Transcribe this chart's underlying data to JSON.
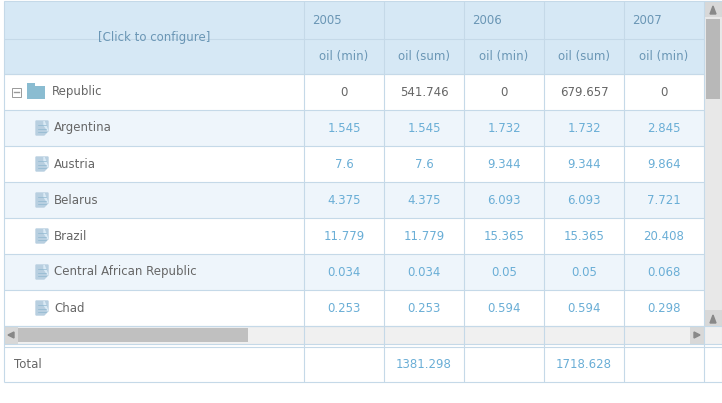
{
  "header_bg": "#d6e8f5",
  "header_text_color": "#6a96b5",
  "row_bg_white": "#ffffff",
  "row_bg_light": "#eef5fb",
  "separator_color": "#c5d9e8",
  "text_color_dark": "#666666",
  "text_color_blue": "#6aaed6",
  "click_to_configure": "[Click to configure]",
  "years": [
    "2005",
    "2006",
    "2007"
  ],
  "sub_headers": [
    "oil (min)",
    "oil (sum)",
    "oil (min)",
    "oil (sum)",
    "oil (min)"
  ],
  "rows": [
    {
      "label": "Republic",
      "level": 0,
      "type": "group",
      "values": [
        "0",
        "541.746",
        "0",
        "679.657",
        "0"
      ]
    },
    {
      "label": "Argentina",
      "level": 1,
      "type": "item",
      "values": [
        "1.545",
        "1.545",
        "1.732",
        "1.732",
        "2.845"
      ]
    },
    {
      "label": "Austria",
      "level": 1,
      "type": "item",
      "values": [
        "7.6",
        "7.6",
        "9.344",
        "9.344",
        "9.864"
      ]
    },
    {
      "label": "Belarus",
      "level": 1,
      "type": "item",
      "values": [
        "4.375",
        "4.375",
        "6.093",
        "6.093",
        "7.721"
      ]
    },
    {
      "label": "Brazil",
      "level": 1,
      "type": "item",
      "values": [
        "11.779",
        "11.779",
        "15.365",
        "15.365",
        "20.408"
      ]
    },
    {
      "label": "Central African Republic",
      "level": 1,
      "type": "item",
      "values": [
        "0.034",
        "0.034",
        "0.05",
        "0.05",
        "0.068"
      ]
    },
    {
      "label": "Chad",
      "level": 1,
      "type": "item",
      "values": [
        "0.253",
        "0.253",
        "0.594",
        "0.594",
        "0.298"
      ]
    }
  ],
  "total_label": "Total",
  "total_values": [
    "",
    "1381.298",
    "",
    "1718.628",
    ""
  ],
  "figw": 7.22,
  "figh": 4.03,
  "dpi": 100
}
